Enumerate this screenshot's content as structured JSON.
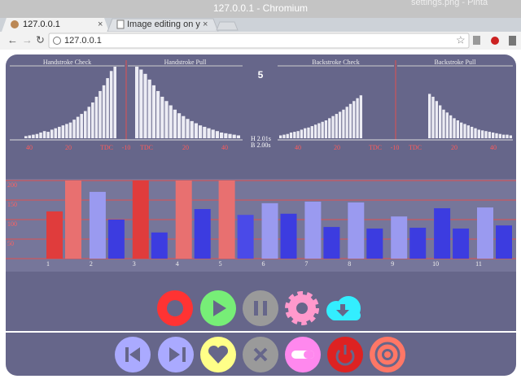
{
  "window": {
    "title": "127.0.0.1 - Chromium",
    "background_title": "settings.png - Pinta"
  },
  "tabs": [
    {
      "label": "127.0.0.1"
    },
    {
      "label": "Image editing on y"
    }
  ],
  "address": "127.0.0.1",
  "summary": {
    "count": "5",
    "handstroke_time": "H 2.01s",
    "backstroke_time": "B 2.00s"
  },
  "chart_data": [
    {
      "type": "profile",
      "ylim": [
        0,
        100
      ],
      "color": "#ececf4",
      "panels": [
        {
          "title": "Handstroke Check",
          "values": [
            3,
            4,
            5,
            6,
            8,
            10,
            9,
            12,
            14,
            16,
            18,
            20,
            22,
            26,
            30,
            34,
            38,
            44,
            50,
            58,
            66,
            74,
            84,
            94,
            100
          ]
        },
        {
          "title": "Handstroke Pull",
          "values": [
            100,
            96,
            90,
            82,
            74,
            66,
            58,
            52,
            46,
            40,
            35,
            31,
            27,
            24,
            21,
            18,
            16,
            14,
            12,
            10,
            8,
            7,
            6,
            5,
            4
          ]
        },
        {
          "title": "Backstroke Check",
          "values": [
            4,
            5,
            6,
            8,
            9,
            10,
            12,
            14,
            15,
            17,
            19,
            21,
            23,
            25,
            28,
            31,
            34,
            37,
            40,
            44,
            48,
            52,
            56,
            60
          ]
        },
        {
          "title": "Backstroke Pull",
          "values": [
            62,
            58,
            52,
            46,
            40,
            36,
            32,
            28,
            25,
            22,
            20,
            18,
            16,
            14,
            12,
            11,
            10,
            9,
            8,
            7,
            6,
            5,
            5,
            4
          ]
        }
      ],
      "axis_labels": [
        [
          "40",
          "20",
          "TDC",
          "-10",
          "TDC",
          "20",
          "40"
        ],
        [
          "40",
          "20",
          "TDC",
          "-10",
          "TDC",
          "20",
          "40"
        ]
      ]
    },
    {
      "type": "bar",
      "categories": [
        "1",
        "2",
        "3",
        "4",
        "5",
        "6",
        "7",
        "8",
        "9",
        "10",
        "11"
      ],
      "series": [
        {
          "values": [
            121,
            171,
            200,
            200,
            200,
            142,
            146,
            144,
            108,
            129,
            131
          ],
          "colors": [
            "#e03c3c",
            "#9a9af0",
            "#e03c3c",
            "#e87070",
            "#e87070",
            "#9a9af0",
            "#9a9af0",
            "#9a9af0",
            "#9a9af0",
            "#3c3ce0",
            "#9a9af0"
          ]
        },
        {
          "values": [
            200,
            100,
            67,
            127,
            112,
            115,
            81,
            77,
            79,
            77,
            85
          ],
          "colors": [
            "#e87070",
            "#3c3ce0",
            "#3c3ce0",
            "#3c3ce0",
            "#4a4ae8",
            "#3c3ce0",
            "#3c3ce0",
            "#3c3ce0",
            "#3c3ce0",
            "#3c3ce0",
            "#3c3ce0"
          ]
        }
      ],
      "ylim": [
        0,
        200
      ],
      "yticks": [
        50,
        100,
        150,
        200
      ],
      "grid": true,
      "grid_color": "#e05050"
    }
  ]
}
